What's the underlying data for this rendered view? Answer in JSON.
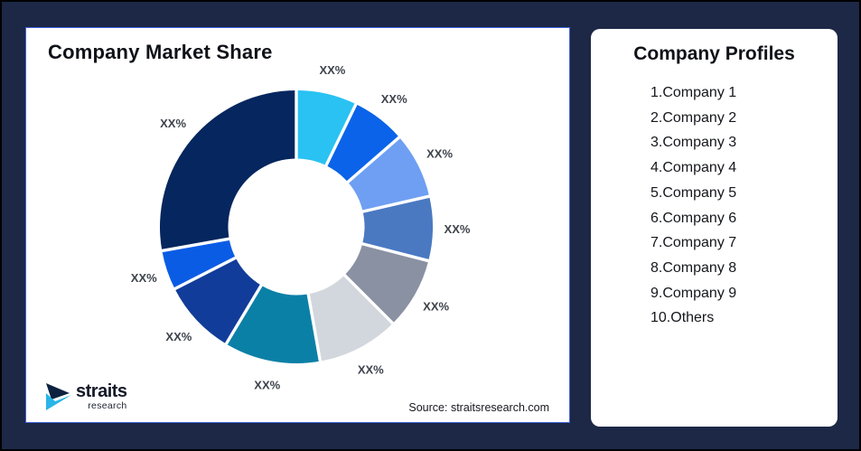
{
  "window": {
    "bg": "#1D2846",
    "outer_border": "#000000"
  },
  "market_share_card": {
    "title": "Company Market Share",
    "source": "Source: straitsresearch.com",
    "border_color": "#3C63DC"
  },
  "logo": {
    "name": "straits",
    "subtitle": "research",
    "mark_navy": "#0D2240",
    "mark_cyan": "#29B5E8"
  },
  "profiles_card": {
    "title": "Company Profiles",
    "items": [
      "1.Company 1",
      "2.Company 2",
      "3.Company 3",
      "4.Company 4",
      "5.Company 5",
      "6.Company 6",
      "7.Company 7",
      "8.Company 8",
      "9.Company 9",
      "10.Others"
    ]
  },
  "chart_data": {
    "type": "pie",
    "subtype": "donut",
    "title": "Company Market Share",
    "names": [
      "Company 1",
      "Company 2",
      "Company 3",
      "Company 4",
      "Company 5",
      "Company 6",
      "Company 7",
      "Company 8",
      "Company 9",
      "Others"
    ],
    "values_pct": [
      7.2,
      6.4,
      7.8,
      7.6,
      8.5,
      9.7,
      11.4,
      8.9,
      4.7,
      27.8
    ],
    "slice_labels": [
      "XX%",
      "XX%",
      "XX%",
      "XX%",
      "XX%",
      "XX%",
      "XX%",
      "XX%",
      "XX%",
      "XX%"
    ],
    "colors": [
      "#29C2F2",
      "#0A63E8",
      "#6E9FF2",
      "#4A79C2",
      "#8A91A2",
      "#D2D6DD",
      "#0B80A6",
      "#113C99",
      "#0B5CE5",
      "#05265E"
    ],
    "start_angle_deg": 0,
    "direction": "clockwise",
    "inner_radius_ratio": 0.5,
    "gap_color": "#FFFFFF",
    "label_color": "#3D434C",
    "legend": "none"
  }
}
